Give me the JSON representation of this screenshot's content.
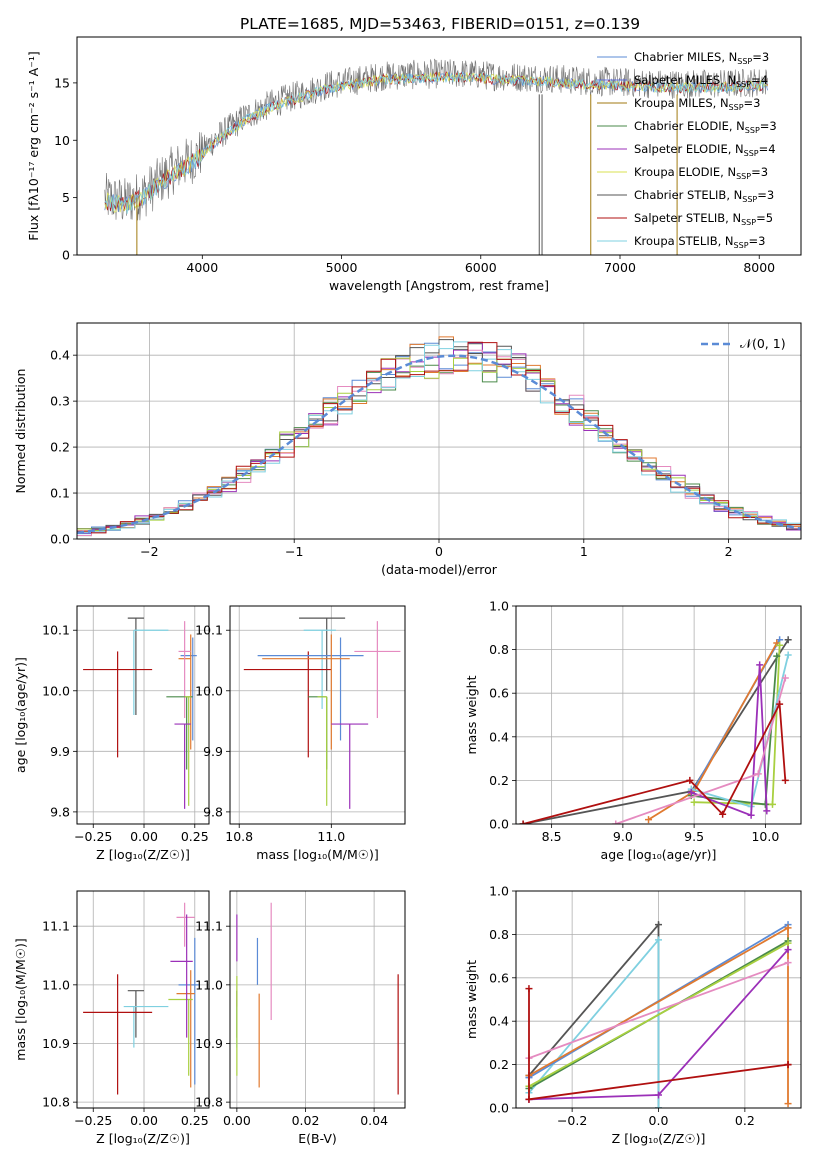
{
  "figure_title": "PLATE=1685, MJD=53463, FIBERID=0151, z=0.139",
  "colors": {
    "Chabrier MILES": "#5b8bd6",
    "Salpeter MILES": "#5c6bd8",
    "Kroupa MILES": "#a07a10",
    "Chabrier ELODIE": "#4a8a4a",
    "Salpeter ELODIE": "#9b30b8",
    "Kroupa ELODIE": "#d8e050",
    "Chabrier STELIB": "#555555",
    "Salpeter STELIB": "#b01010",
    "Kroupa STELIB": "#7fd0e0",
    "orange": "#e07a30",
    "pink": "#e58bc0",
    "lime": "#a8d040",
    "dashed": "#5b8bd6",
    "grid": "#b0b0b0"
  },
  "chart_data": [
    {
      "id": "spectrum",
      "type": "line",
      "title": "PLATE=1685, MJD=53463, FIBERID=0151, z=0.139",
      "xlabel": "wavelength [Angstrom, rest frame]",
      "ylabel": "Flux [fλ10⁻¹⁷ erg cm⁻² s⁻¹ A⁻¹]",
      "xlim": [
        3100,
        8300
      ],
      "ylim": [
        0,
        19
      ],
      "xticks": [
        4000,
        5000,
        6000,
        7000,
        8000
      ],
      "yticks": [
        0,
        5,
        10,
        15
      ],
      "grid": false,
      "legend": "upper-right",
      "legend_entries": [
        {
          "label": "Chabrier MILES, N",
          "sub": "SSP",
          "suffix": "=3"
        },
        {
          "label": "Salpeter MILES, N",
          "sub": "SSP",
          "suffix": "=4"
        },
        {
          "label": "Kroupa MILES, N",
          "sub": "SSP",
          "suffix": "=3"
        },
        {
          "label": "Chabrier ELODIE, N",
          "sub": "SSP",
          "suffix": "=3"
        },
        {
          "label": "Salpeter ELODIE, N",
          "sub": "SSP",
          "suffix": "=4"
        },
        {
          "label": "Kroupa ELODIE, N",
          "sub": "SSP",
          "suffix": "=3"
        },
        {
          "label": "Chabrier STELIB, N",
          "sub": "SSP",
          "suffix": "=3"
        },
        {
          "label": "Salpeter STELIB, N",
          "sub": "SSP",
          "suffix": "=5"
        },
        {
          "label": "Kroupa STELIB, N",
          "sub": "SSP",
          "suffix": "=3"
        }
      ],
      "continuum": {
        "x": [
          3300,
          3450,
          3600,
          3800,
          3950,
          4100,
          4300,
          4500,
          4700,
          4900,
          5100,
          5300,
          5500,
          5700,
          5900,
          6100,
          6300,
          6500,
          6700,
          6900,
          7100,
          7300,
          7500,
          7700,
          7900,
          8050
        ],
        "y": [
          5.0,
          4.6,
          5.5,
          7.5,
          8.5,
          10.2,
          12.0,
          13.2,
          14.0,
          14.8,
          15.2,
          15.6,
          15.7,
          15.8,
          15.8,
          15.6,
          15.5,
          15.4,
          15.2,
          15.1,
          15.0,
          14.9,
          14.9,
          14.9,
          15.0,
          15.1
        ]
      },
      "spikes": [
        {
          "x": 3530,
          "ymin": 0,
          "ymax": 5,
          "series": "Kroupa MILES"
        },
        {
          "x": 6420,
          "ymin": 0,
          "ymax": 14,
          "series": "Chabrier STELIB"
        },
        {
          "x": 6440,
          "ymin": 0,
          "ymax": 14,
          "series": "Chabrier STELIB"
        },
        {
          "x": 6790,
          "ymin": 0,
          "ymax": 14,
          "series": "Kroupa MILES"
        },
        {
          "x": 7410,
          "ymin": 0,
          "ymax": 14,
          "series": "Kroupa MILES"
        }
      ]
    },
    {
      "id": "residuals",
      "type": "step",
      "xlabel": "(data-model)/error",
      "ylabel": "Normed distribution",
      "xlim": [
        -2.5,
        2.5
      ],
      "ylim": [
        0,
        0.47
      ],
      "xticks": [
        -2,
        -1,
        0,
        1,
        2
      ],
      "yticks": [
        0.0,
        0.1,
        0.2,
        0.3,
        0.4
      ],
      "grid": true,
      "legend": "upper-right",
      "legend_label": "𝒩(0, 1)",
      "bin_width": 0.1,
      "bin_start": -2.5,
      "gaussian": {
        "mu": 0.1,
        "sigma": 1.0
      },
      "hist_colors": [
        "#5b8bd6",
        "#e07a30",
        "#4a8a4a",
        "#9b30b8",
        "#e58bc0",
        "#555555",
        "#a8d040",
        "#7fd0e0",
        "#b01010"
      ]
    },
    {
      "id": "age-vs-Z",
      "type": "errorbar",
      "xlabel": "Z [log₁₀(Z/Z☉)]",
      "ylabel": "age  [log₁₀(age/yr)]",
      "xlim": [
        -0.33,
        0.32
      ],
      "ylim": [
        9.78,
        10.14
      ],
      "xticks": [
        -0.25,
        0.0,
        0.25
      ],
      "xticklabels": [
        "−0.25",
        "0.00",
        "0.25"
      ],
      "yticks": [
        9.8,
        9.9,
        10.0,
        10.1
      ],
      "grid": true,
      "points": [
        {
          "x": -0.04,
          "y": 10.12,
          "xerr": [
            0.04,
            0.04
          ],
          "yerr": [
            0.16,
            0.0
          ],
          "color": "#555555"
        },
        {
          "x": -0.05,
          "y": 10.1,
          "xerr": [
            0.0,
            0.17
          ],
          "yerr": [
            0.14,
            0.0
          ],
          "color": "#7fd0e0"
        },
        {
          "x": -0.13,
          "y": 10.035,
          "xerr": [
            0.17,
            0.17
          ],
          "yerr": [
            0.145,
            0.03
          ],
          "color": "#b01010"
        },
        {
          "x": 0.24,
          "y": 10.058,
          "xerr": [
            0.06,
            0.02
          ],
          "yerr": [
            0.14,
            0.03
          ],
          "color": "#5b8bd6"
        },
        {
          "x": 0.23,
          "y": 10.053,
          "xerr": [
            0.06,
            0.0
          ],
          "yerr": [
            0.15,
            0.04
          ],
          "color": "#e07a30"
        },
        {
          "x": 0.2,
          "y": 10.065,
          "xerr": [
            0.03,
            0.03
          ],
          "yerr": [
            0.11,
            0.05
          ],
          "color": "#e58bc0"
        },
        {
          "x": 0.21,
          "y": 9.99,
          "xerr": [
            0.1,
            0.03
          ],
          "yerr": [
            0.12,
            0.0
          ],
          "color": "#4a8a4a"
        },
        {
          "x": 0.22,
          "y": 9.99,
          "xerr": [
            0.02,
            0.01
          ],
          "yerr": [
            0.18,
            0.0
          ],
          "color": "#a8d040"
        },
        {
          "x": 0.2,
          "y": 9.945,
          "xerr": [
            0.05,
            0.03
          ],
          "yerr": [
            0.14,
            0.0
          ],
          "color": "#9b30b8"
        }
      ]
    },
    {
      "id": "age-vs-mass",
      "type": "errorbar",
      "xlabel": "mass [log₁₀(M/M☉)]",
      "ylabel": "",
      "xlim": [
        10.78,
        11.16
      ],
      "ylim": [
        9.78,
        10.14
      ],
      "xticks": [
        10.8,
        11.0
      ],
      "xticklabels": [
        "10.8",
        "11.0"
      ],
      "yticks": [
        9.8,
        9.9,
        10.0,
        10.1
      ],
      "grid": true,
      "points": [
        {
          "x": 10.99,
          "y": 10.12,
          "xerr": [
            0.06,
            0.04
          ],
          "yerr": [
            0.12,
            0.0
          ],
          "color": "#555555"
        },
        {
          "x": 10.98,
          "y": 10.1,
          "xerr": [
            0.04,
            0.03
          ],
          "yerr": [
            0.13,
            0.0
          ],
          "color": "#7fd0e0"
        },
        {
          "x": 10.95,
          "y": 10.035,
          "xerr": [
            0.14,
            0.05
          ],
          "yerr": [
            0.145,
            0.03
          ],
          "color": "#b01010"
        },
        {
          "x": 11.02,
          "y": 10.058,
          "xerr": [
            0.18,
            0.05
          ],
          "yerr": [
            0.14,
            0.03
          ],
          "color": "#5b8bd6"
        },
        {
          "x": 11.0,
          "y": 10.053,
          "xerr": [
            0.15,
            0.04
          ],
          "yerr": [
            0.15,
            0.04
          ],
          "color": "#e07a30"
        },
        {
          "x": 11.1,
          "y": 10.065,
          "xerr": [
            0.05,
            0.05
          ],
          "yerr": [
            0.11,
            0.05
          ],
          "color": "#e58bc0"
        },
        {
          "x": 10.99,
          "y": 9.99,
          "xerr": [
            0.04,
            0.0
          ],
          "yerr": [
            0.12,
            0.0
          ],
          "color": "#4a8a4a"
        },
        {
          "x": 10.99,
          "y": 9.99,
          "xerr": [
            0.02,
            0.0
          ],
          "yerr": [
            0.18,
            0.0
          ],
          "color": "#a8d040"
        },
        {
          "x": 11.04,
          "y": 9.945,
          "xerr": [
            0.04,
            0.04
          ],
          "yerr": [
            0.14,
            0.0
          ],
          "color": "#9b30b8"
        }
      ]
    },
    {
      "id": "weight-vs-age",
      "type": "line",
      "xlabel": "age  [log₁₀(age/yr)]",
      "ylabel": "mass weight",
      "xlim": [
        8.25,
        10.25
      ],
      "ylim": [
        0,
        1
      ],
      "xticks": [
        8.5,
        9.0,
        9.5,
        10.0
      ],
      "xticklabels": [
        "8.5",
        "9.0",
        "9.5",
        "10.0"
      ],
      "yticks": [
        0.0,
        0.2,
        0.4,
        0.6,
        0.8,
        1.0
      ],
      "grid": true,
      "series": [
        {
          "color": "#555555",
          "x": [
            8.3,
            9.48,
            10.16
          ],
          "y": [
            0.0,
            0.15,
            0.845
          ]
        },
        {
          "color": "#5b8bd6",
          "x": [
            9.48,
            10.1
          ],
          "y": [
            0.14,
            0.845
          ]
        },
        {
          "color": "#e07a30",
          "x": [
            9.18,
            9.5,
            10.08
          ],
          "y": [
            0.02,
            0.15,
            0.83
          ]
        },
        {
          "color": "#a8d040",
          "x": [
            9.5,
            10.05,
            10.1
          ],
          "y": [
            0.1,
            0.09,
            0.82
          ]
        },
        {
          "color": "#4a8a4a",
          "x": [
            9.48,
            10.0,
            10.08
          ],
          "y": [
            0.13,
            0.09,
            0.77
          ]
        },
        {
          "color": "#7fd0e0",
          "x": [
            9.48,
            9.9,
            10.16
          ],
          "y": [
            0.16,
            0.08,
            0.775
          ]
        },
        {
          "color": "#9b30b8",
          "x": [
            9.48,
            9.9,
            9.96,
            10.01
          ],
          "y": [
            0.145,
            0.04,
            0.73,
            0.06
          ]
        },
        {
          "color": "#e58bc0",
          "x": [
            8.95,
            9.95,
            10.14
          ],
          "y": [
            0.0,
            0.23,
            0.67
          ]
        },
        {
          "color": "#b01010",
          "x": [
            8.3,
            9.47,
            9.7,
            10.1,
            10.14
          ],
          "y": [
            0.0,
            0.2,
            0.045,
            0.55,
            0.2
          ]
        }
      ]
    },
    {
      "id": "mass-vs-Z",
      "type": "errorbar",
      "xlabel": "Z [log₁₀(Z/Z☉)]",
      "ylabel": "mass [log₁₀(M/M☉)]",
      "xlim": [
        -0.33,
        0.32
      ],
      "ylim": [
        10.79,
        11.16
      ],
      "xticks": [
        -0.25,
        0.0,
        0.25
      ],
      "xticklabels": [
        "−0.25",
        "0.00",
        "0.25"
      ],
      "yticks": [
        10.8,
        10.9,
        11.0,
        11.1
      ],
      "grid": true,
      "points": [
        {
          "x": -0.04,
          "y": 10.99,
          "xerr": [
            0.04,
            0.04
          ],
          "yerr": [
            0.08,
            0.0
          ],
          "color": "#555555"
        },
        {
          "x": -0.05,
          "y": 10.963,
          "xerr": [
            0.05,
            0.17
          ],
          "yerr": [
            0.07,
            0.0
          ],
          "color": "#7fd0e0"
        },
        {
          "x": -0.13,
          "y": 10.953,
          "xerr": [
            0.17,
            0.17
          ],
          "yerr": [
            0.14,
            0.065
          ],
          "color": "#b01010"
        },
        {
          "x": 0.25,
          "y": 11.0,
          "xerr": [
            0.08,
            0.02
          ],
          "yerr": [
            0.17,
            0.08
          ],
          "color": "#5b8bd6"
        },
        {
          "x": 0.23,
          "y": 10.985,
          "xerr": [
            0.07,
            0.02
          ],
          "yerr": [
            0.16,
            0.04
          ],
          "color": "#e07a30"
        },
        {
          "x": 0.2,
          "y": 11.115,
          "xerr": [
            0.04,
            0.05
          ],
          "yerr": [
            0.05,
            0.025
          ],
          "color": "#e58bc0"
        },
        {
          "x": 0.22,
          "y": 10.975,
          "xerr": [
            0.1,
            0.02
          ],
          "yerr": [
            0.13,
            0.0
          ],
          "color": "#a8d040"
        },
        {
          "x": 0.21,
          "y": 11.04,
          "xerr": [
            0.08,
            0.03
          ],
          "yerr": [
            0.13,
            0.08
          ],
          "color": "#9b30b8"
        }
      ]
    },
    {
      "id": "mass-vs-ebv",
      "type": "errorbar",
      "xlabel": "E(B-V)",
      "ylabel": "",
      "xlim": [
        -0.002,
        0.049
      ],
      "ylim": [
        10.79,
        11.16
      ],
      "xticks": [
        0.0,
        0.02,
        0.04
      ],
      "xticklabels": [
        "0.00",
        "0.02",
        "0.04"
      ],
      "yticks": [
        10.8,
        10.9,
        11.0,
        11.1
      ],
      "grid": true,
      "points": [
        {
          "x": 0.0,
          "y": 10.99,
          "xerr": [
            0,
            0
          ],
          "yerr": [
            0.08,
            0.0
          ],
          "color": "#555555"
        },
        {
          "x": 0.0,
          "y": 10.963,
          "xerr": [
            0,
            0
          ],
          "yerr": [
            0.07,
            0.0
          ],
          "color": "#7fd0e0"
        },
        {
          "x": 0.0,
          "y": 10.975,
          "xerr": [
            0,
            0
          ],
          "yerr": [
            0.13,
            0.04
          ],
          "color": "#a8d040"
        },
        {
          "x": 0.0,
          "y": 11.04,
          "xerr": [
            0,
            0
          ],
          "yerr": [
            0.0,
            0.08
          ],
          "color": "#9b30b8"
        },
        {
          "x": 0.006,
          "y": 11.0,
          "xerr": [
            0,
            0
          ],
          "yerr": [
            0.0,
            0.08
          ],
          "color": "#5b8bd6"
        },
        {
          "x": 0.0065,
          "y": 10.985,
          "xerr": [
            0,
            0
          ],
          "yerr": [
            0.16,
            0.0
          ],
          "color": "#e07a30"
        },
        {
          "x": 0.01,
          "y": 11.04,
          "xerr": [
            0,
            0
          ],
          "yerr": [
            0.1,
            0.1
          ],
          "color": "#e58bc0"
        },
        {
          "x": 0.047,
          "y": 10.953,
          "xerr": [
            0,
            0
          ],
          "yerr": [
            0.14,
            0.065
          ],
          "color": "#b01010"
        }
      ]
    },
    {
      "id": "weight-vs-Z",
      "type": "line",
      "xlabel": "Z [log₁₀(Z/Z☉)]",
      "ylabel": "mass weight",
      "xlim": [
        -0.33,
        0.33
      ],
      "ylim": [
        0,
        1
      ],
      "xticks": [
        -0.2,
        0.0,
        0.2
      ],
      "xticklabels": [
        "−0.2",
        "0.0",
        "0.2"
      ],
      "yticks": [
        0.0,
        0.2,
        0.4,
        0.6,
        0.8,
        1.0
      ],
      "grid": true,
      "series": [
        {
          "color": "#555555",
          "x": [
            -0.3,
            0.0,
            0.0
          ],
          "y": [
            0.15,
            0.845,
            0.0
          ]
        },
        {
          "color": "#7fd0e0",
          "x": [
            -0.3,
            0.0,
            0.0
          ],
          "y": [
            0.07,
            0.775,
            0.0
          ]
        },
        {
          "color": "#5b8bd6",
          "x": [
            -0.3,
            0.3
          ],
          "y": [
            0.14,
            0.845
          ]
        },
        {
          "color": "#e07a30",
          "x": [
            -0.3,
            0.3,
            0.3
          ],
          "y": [
            0.15,
            0.83,
            0.02
          ]
        },
        {
          "color": "#4a8a4a",
          "x": [
            -0.3,
            0.3
          ],
          "y": [
            0.09,
            0.77
          ]
        },
        {
          "color": "#a8d040",
          "x": [
            -0.3,
            0.3
          ],
          "y": [
            0.1,
            0.76
          ]
        },
        {
          "color": "#e58bc0",
          "x": [
            -0.3,
            0.3
          ],
          "y": [
            0.23,
            0.67
          ]
        },
        {
          "color": "#9b30b8",
          "x": [
            -0.3,
            0.0,
            0.3
          ],
          "y": [
            0.04,
            0.06,
            0.73
          ]
        },
        {
          "color": "#b01010",
          "x": [
            -0.3,
            -0.3,
            0.3,
            0.3
          ],
          "y": [
            0.55,
            0.04,
            0.2,
            0.2
          ]
        }
      ]
    }
  ]
}
